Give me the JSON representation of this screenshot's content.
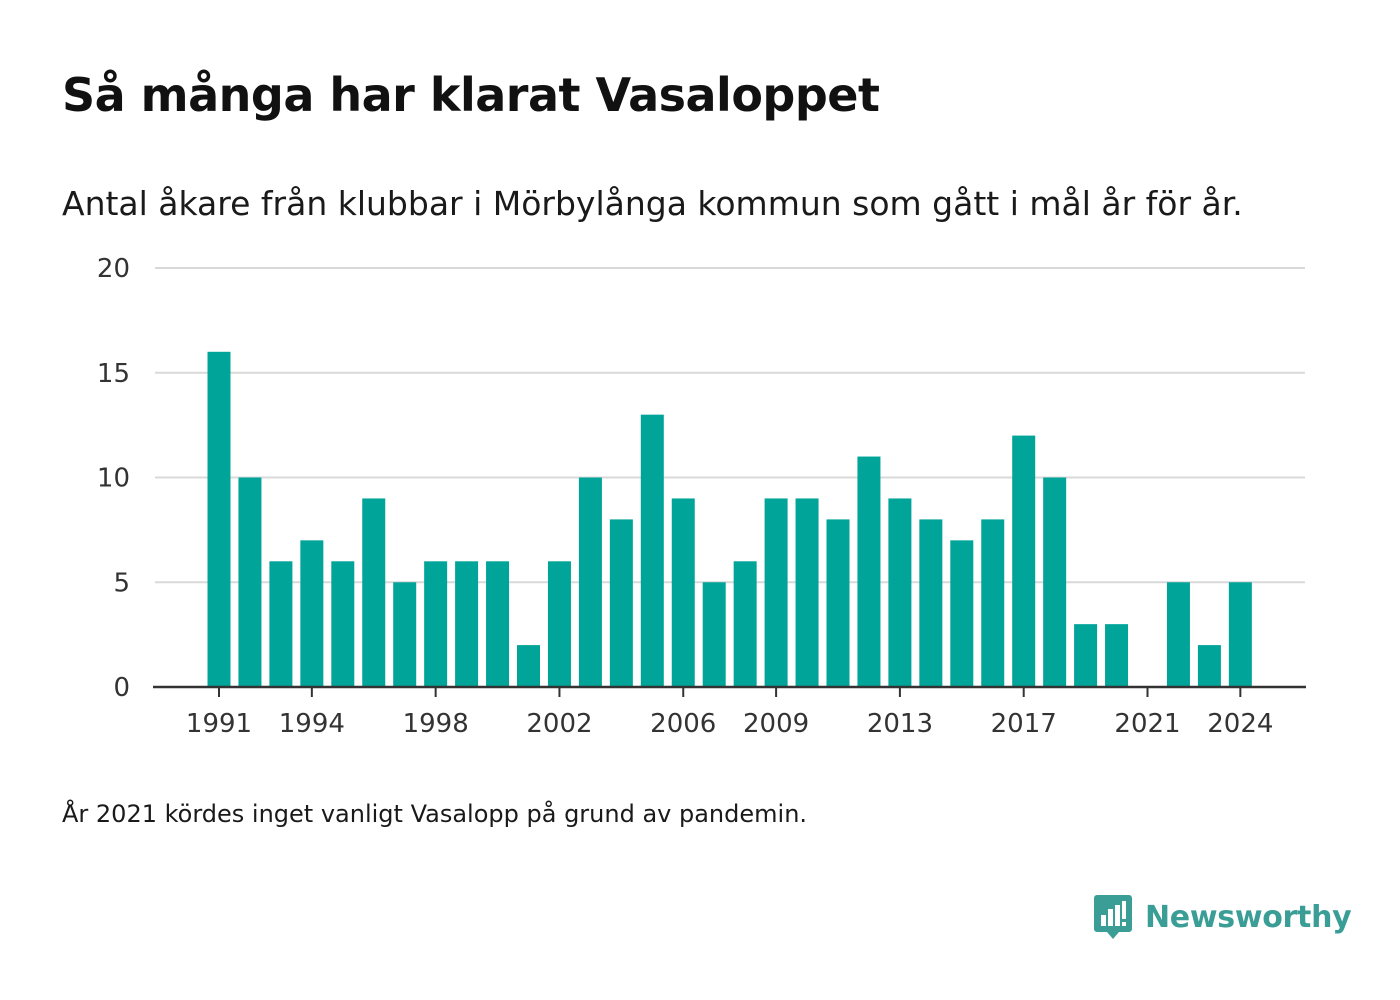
{
  "header": {
    "title": "Så många har klarat Vasaloppet",
    "subtitle": "Antal åkare från klubbar i Mörbylånga kommun som gått i mål år för år."
  },
  "footer": {
    "note": "År 2021 kördes inget vanligt Vasalopp på grund av pandemin.",
    "brand": "Newsworthy",
    "brand_icon": "newsworthy-logo-icon"
  },
  "colors": {
    "bar": "#00a499",
    "grid": "#d9d9d9",
    "axis": "#333333",
    "brand": "#3a9e96"
  },
  "chart_data": {
    "type": "bar",
    "title": "Så många har klarat Vasaloppet",
    "subtitle": "Antal åkare från klubbar i Mörbylånga kommun som gått i mål år för år.",
    "xlabel": "",
    "ylabel": "",
    "ylim": [
      0,
      20
    ],
    "yticks": [
      0,
      5,
      10,
      15,
      20
    ],
    "xticks": [
      1991,
      1994,
      1998,
      2002,
      2006,
      2009,
      2013,
      2017,
      2021,
      2024
    ],
    "grid": true,
    "x": [
      1991,
      1992,
      1993,
      1994,
      1995,
      1996,
      1997,
      1998,
      1999,
      2000,
      2001,
      2002,
      2003,
      2004,
      2005,
      2006,
      2007,
      2008,
      2009,
      2010,
      2011,
      2012,
      2013,
      2014,
      2015,
      2016,
      2017,
      2018,
      2019,
      2020,
      2021,
      2022,
      2023,
      2024
    ],
    "values": [
      16,
      10,
      6,
      7,
      6,
      9,
      5,
      6,
      6,
      6,
      2,
      6,
      10,
      8,
      13,
      9,
      5,
      6,
      9,
      9,
      8,
      11,
      9,
      8,
      7,
      8,
      12,
      10,
      3,
      3,
      0,
      5,
      2,
      5
    ]
  }
}
